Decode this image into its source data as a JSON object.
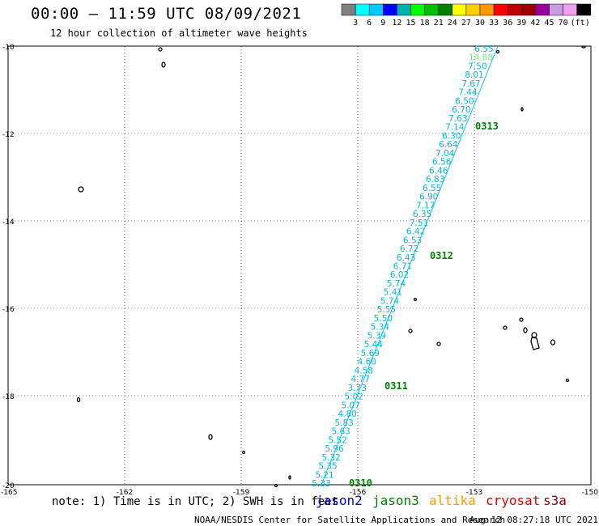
{
  "header": {
    "title": "00:00 – 11:59 UTC 08/09/2021",
    "subtitle": "12 hour collection of altimeter wave heights"
  },
  "legend": {
    "unit": "(ft)",
    "colors": [
      "#808080",
      "#00ffff",
      "#00c8ff",
      "#0000ff",
      "#00b0b0",
      "#00ff00",
      "#00c000",
      "#008000",
      "#ffff00",
      "#ffd000",
      "#ff9900",
      "#ff0000",
      "#c00000",
      "#a00000",
      "#990099",
      "#c89ee0",
      "#f0a0f0",
      "#000000"
    ],
    "labels": [
      "3",
      "6",
      "9",
      "12",
      "15",
      "18",
      "21",
      "24",
      "27",
      "30",
      "33",
      "36",
      "39",
      "42",
      "45",
      "70"
    ]
  },
  "map": {
    "lat_ticks": [
      "-10",
      "-12",
      "-14",
      "-16",
      "-18",
      "-20"
    ],
    "lon_ticks": [
      "-165",
      "-162",
      "-159",
      "-156",
      "-153",
      "-150"
    ]
  },
  "track": {
    "labels": [
      {
        "v": "6.55",
        "c": "#00b8e0"
      },
      {
        "v": "14.88",
        "c": "#7ee87e"
      },
      {
        "v": "7.50",
        "c": "#00b8e0"
      },
      {
        "v": "8.01",
        "c": "#00b8e0"
      },
      {
        "v": "7.67",
        "c": "#00b8e0"
      },
      {
        "v": "7.44",
        "c": "#00b8e0"
      },
      {
        "v": "6.50",
        "c": "#00b8e0"
      },
      {
        "v": "6.70",
        "c": "#00b8e0"
      },
      {
        "v": "7.63",
        "c": "#00b8e0"
      },
      {
        "v": "7.14",
        "c": "#00b8e0"
      },
      {
        "v": "6.30",
        "c": "#00b8e0"
      },
      {
        "v": "6.64",
        "c": "#00b8e0"
      },
      {
        "v": "7.04",
        "c": "#00b8e0"
      },
      {
        "v": "6.56",
        "c": "#00b8e0"
      },
      {
        "v": "6.46",
        "c": "#00b8e0"
      },
      {
        "v": "6.83",
        "c": "#00b8e0"
      },
      {
        "v": "6.55",
        "c": "#00b8e0"
      },
      {
        "v": "6.90",
        "c": "#00b8e0"
      },
      {
        "v": "7.17",
        "c": "#00b8e0"
      },
      {
        "v": "6.35",
        "c": "#00b8e0"
      },
      {
        "v": "7.51",
        "c": "#00b8e0"
      },
      {
        "v": "6.42",
        "c": "#00b8e0"
      },
      {
        "v": "6.53",
        "c": "#00b8e0"
      },
      {
        "v": "6.72",
        "c": "#00b8e0"
      },
      {
        "v": "6.43",
        "c": "#00b8e0"
      },
      {
        "v": "6.71",
        "c": "#00b8e0"
      },
      {
        "v": "6.02",
        "c": "#00b8e0"
      },
      {
        "v": "5.74",
        "c": "#00b8e0"
      },
      {
        "v": "5.41",
        "c": "#00b8e0"
      },
      {
        "v": "5.74",
        "c": "#00b8e0"
      },
      {
        "v": "5.55",
        "c": "#00b8e0"
      },
      {
        "v": "5.50",
        "c": "#00b8e0"
      },
      {
        "v": "5.34",
        "c": "#00b8e0"
      },
      {
        "v": "5.39",
        "c": "#00b8e0"
      },
      {
        "v": "5.44",
        "c": "#00b8e0"
      },
      {
        "v": "5.69",
        "c": "#00b8e0"
      },
      {
        "v": "4.60",
        "c": "#00b8e0"
      },
      {
        "v": "4.58",
        "c": "#00b8e0"
      },
      {
        "v": "4.77",
        "c": "#00b8e0"
      },
      {
        "v": "3.73",
        "c": "#00b8e0"
      },
      {
        "v": "5.02",
        "c": "#00b8e0"
      },
      {
        "v": "5.07",
        "c": "#00b8e0"
      },
      {
        "v": "4.80",
        "c": "#00b8e0"
      },
      {
        "v": "5.83",
        "c": "#00b8e0"
      },
      {
        "v": "5.63",
        "c": "#00b8e0"
      },
      {
        "v": "5.52",
        "c": "#00b8e0"
      },
      {
        "v": "5.96",
        "c": "#00b8e0"
      },
      {
        "v": "5.32",
        "c": "#00b8e0"
      },
      {
        "v": "5.35",
        "c": "#00b8e0"
      },
      {
        "v": "5.21",
        "c": "#00b8e0"
      },
      {
        "v": "5.33",
        "c": "#00b8e0"
      }
    ],
    "times": [
      "0313",
      "0312",
      "0311",
      "0310"
    ],
    "time_color": "#008000"
  },
  "footer": {
    "note": "note: 1) Time is in UTC; 2) SWH is in feet",
    "missions": [
      {
        "name": "jason2",
        "color": "#0000cc"
      },
      {
        "name": "jason3",
        "color": "#008000"
      },
      {
        "name": "altika",
        "color": "#ff9900"
      },
      {
        "name": "cryosat",
        "color": "#dd0000"
      },
      {
        "name": "s3a",
        "color": "#8b0000"
      }
    ],
    "credit": "NOAA/NESDIS Center for Satellite Applications and Research",
    "date": "Aug 12 08:27:18 UTC 2021"
  }
}
